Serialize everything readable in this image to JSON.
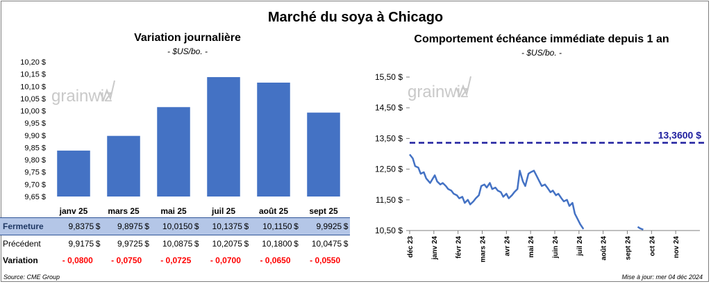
{
  "title": "Marché du soya à Chicago",
  "left_chart": {
    "title": "Variation journalière",
    "unit": "- $US/bo. -",
    "watermark": "grainwiz"
  },
  "right_chart": {
    "title": "Comportement échéance immédiate depuis 1 an",
    "unit": "- $US/bo. -",
    "watermark": "grainwiz",
    "reference_label": "13,3600 $"
  },
  "chart_data": [
    {
      "type": "bar",
      "title": "Variation journalière",
      "ylabel": "- $US/bo. -",
      "categories": [
        "janv 25",
        "mars 25",
        "mai 25",
        "juil 25",
        "août 25",
        "sept 25"
      ],
      "values": [
        9.8375,
        9.8975,
        10.015,
        10.1375,
        10.115,
        9.9925
      ],
      "ylim": [
        9.65,
        10.2
      ],
      "yticks": [
        9.65,
        9.7,
        9.75,
        9.8,
        9.85,
        9.9,
        9.95,
        10.0,
        10.05,
        10.1,
        10.15,
        10.2
      ],
      "ytick_labels": [
        "9,65 $",
        "9,70 $",
        "9,75 $",
        "9,80 $",
        "9,85 $",
        "9,90 $",
        "9,95 $",
        "10,00 $",
        "10,05 $",
        "10,10 $",
        "10,15 $",
        "10,20 $"
      ],
      "bar_color": "#4472c4",
      "grid": false
    },
    {
      "type": "line",
      "title": "Comportement échéance immédiate depuis 1 an",
      "ylabel": "- $US/bo. -",
      "x_ticks": [
        "déc 23",
        "janv 24",
        "févr 24",
        "mars 24",
        "avr 24",
        "mai 24",
        "juin 24",
        "juil 24",
        "août 24",
        "sept 24",
        "oct 24",
        "nov 24"
      ],
      "ylim": [
        10.5,
        15.5
      ],
      "yticks": [
        10.5,
        11.5,
        12.5,
        13.5,
        14.5,
        15.5
      ],
      "ytick_labels": [
        "10,50 $",
        "11,50 $",
        "12,50 $",
        "13,50 $",
        "14,50 $",
        "15,50 $"
      ],
      "reference_value": 13.36,
      "reference_color": "#1f1f9f",
      "line_color": "#4472c4",
      "grid": false,
      "series": [
        {
          "x": [
            "2023-12-01",
            "2023-12-05",
            "2023-12-08",
            "2023-12-12",
            "2023-12-15",
            "2023-12-19",
            "2023-12-22",
            "2023-12-27",
            "2024-01-02",
            "2024-01-05",
            "2024-01-09",
            "2024-01-12",
            "2024-01-16",
            "2024-01-19",
            "2024-01-23",
            "2024-01-26",
            "2024-01-30",
            "2024-02-02",
            "2024-02-06",
            "2024-02-09",
            "2024-02-13",
            "2024-02-16",
            "2024-02-20",
            "2024-02-23",
            "2024-02-27",
            "2024-03-01",
            "2024-03-05",
            "2024-03-08",
            "2024-03-12",
            "2024-03-15",
            "2024-03-19",
            "2024-03-22",
            "2024-03-26",
            "2024-03-29",
            "2024-04-02",
            "2024-04-05",
            "2024-04-09",
            "2024-04-12",
            "2024-04-16",
            "2024-04-19",
            "2024-04-23",
            "2024-04-26",
            "2024-04-30",
            "2024-05-03",
            "2024-05-07",
            "2024-05-10",
            "2024-05-14",
            "2024-05-17",
            "2024-05-21",
            "2024-05-24",
            "2024-05-28",
            "2024-05-31",
            "2024-06-04",
            "2024-06-07",
            "2024-06-11",
            "2024-06-14",
            "2024-06-18",
            "2024-06-21",
            "2024-06-25",
            "2024-06-28",
            "2024-07-01",
            "2024-07-05",
            "2024-07-09"
          ],
          "y": [
            12.98,
            12.85,
            12.6,
            12.55,
            12.35,
            12.4,
            12.2,
            12.05,
            12.3,
            12.1,
            12.0,
            12.05,
            11.95,
            11.85,
            11.8,
            11.7,
            11.65,
            11.55,
            11.6,
            11.4,
            11.5,
            11.35,
            11.45,
            11.55,
            11.65,
            11.95,
            12.0,
            11.9,
            12.05,
            11.85,
            11.9,
            11.8,
            11.75,
            11.6,
            11.7,
            11.55,
            11.65,
            11.75,
            11.85,
            12.45,
            12.1,
            11.95,
            12.35,
            12.4,
            12.45,
            12.3,
            12.1,
            11.95,
            12.0,
            11.9,
            11.75,
            11.8,
            11.65,
            11.7,
            11.55,
            11.45,
            11.5,
            11.3,
            11.4,
            11.05,
            10.9,
            10.7,
            10.55
          ]
        },
        {
          "x": [
            "2024-09-16",
            "2024-09-19",
            "2024-09-23"
          ],
          "y": [
            10.62,
            10.57,
            10.53
          ]
        }
      ]
    }
  ],
  "table": {
    "rows": [
      {
        "label": "Fermeture",
        "values": [
          "9,8375",
          "9,8975",
          "10,0150",
          "10,1375",
          "10,1150",
          "9,9925"
        ],
        "currency": "$"
      },
      {
        "label": "Précédent",
        "values": [
          "9,9175",
          "9,9725",
          "10,0875",
          "10,2075",
          "10,1800",
          "10,0475"
        ],
        "currency": "$"
      },
      {
        "label": "Variation",
        "values": [
          "- 0,0800",
          "- 0,0750",
          "- 0,0725",
          "- 0,0700",
          "- 0,0650",
          "- 0,0550"
        ]
      }
    ]
  },
  "footer": {
    "source": "Source: CME Group",
    "updated": "Mise à jour: mer 04 déc 2024"
  }
}
